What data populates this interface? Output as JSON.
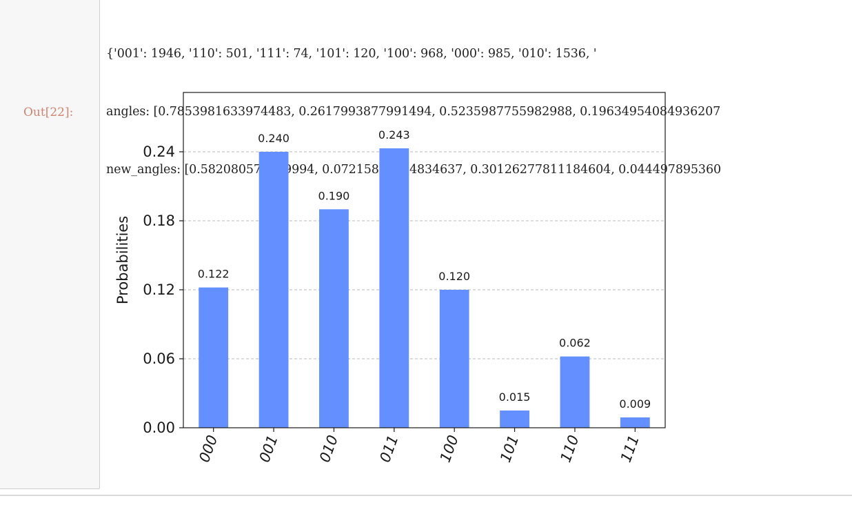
{
  "cell": {
    "stdout_lines": [
      "{'001': 1946, '110': 501, '111': 74, '101': 120, '100': 968, '000': 985, '010': 1536, '",
      "angles: [0.7853981633974483, 0.2617993877991494, 0.5235987755982988, 0.19634954084936207",
      "new_angles: [0.582080577269994, 0.07215874924834637, 0.30126277811184604, 0.044497895360"
    ],
    "out_prompt": "Out[22]:"
  },
  "chart_data": {
    "type": "bar",
    "categories": [
      "000",
      "001",
      "010",
      "011",
      "100",
      "101",
      "110",
      "111"
    ],
    "values": [
      0.122,
      0.24,
      0.19,
      0.243,
      0.12,
      0.015,
      0.062,
      0.009
    ],
    "value_labels": [
      "0.122",
      "0.240",
      "0.190",
      "0.243",
      "0.120",
      "0.015",
      "0.062",
      "0.009"
    ],
    "ylabel": "Probabilities",
    "xlabel": "",
    "title": "",
    "yticks": [
      0.0,
      0.06,
      0.12,
      0.18,
      0.24
    ],
    "ytick_labels": [
      "0.00",
      "0.06",
      "0.12",
      "0.18",
      "0.24"
    ],
    "ylim": [
      0,
      0.2916
    ],
    "grid": "horizontal dashed",
    "bar_color": "#648fff",
    "xtick_rotation": "70deg"
  }
}
